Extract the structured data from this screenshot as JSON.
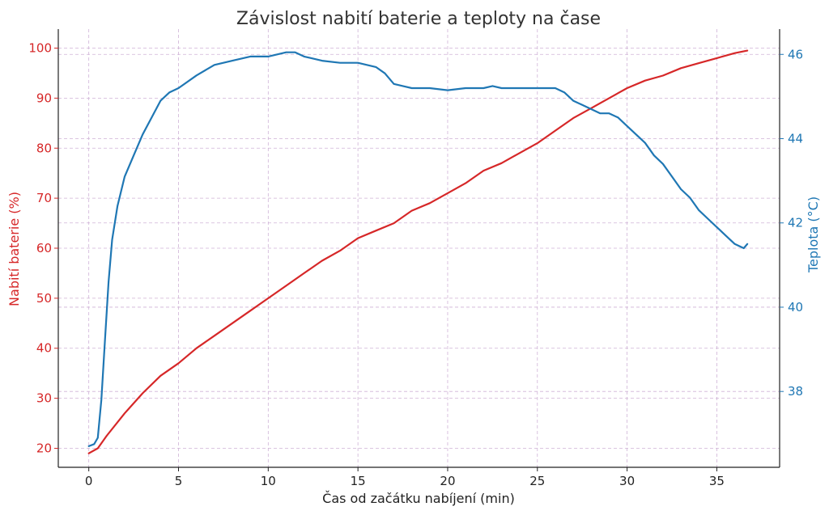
{
  "chart_data": {
    "type": "line",
    "title": "Závislost nabití baterie a teploty na čase",
    "xlabel": "Čas od začátku nabíjení (min)",
    "ylabel_left": "Nabití baterie (%)",
    "ylabel_right": "Teplota (°C)",
    "xlim": [
      -1.7,
      38.5
    ],
    "ylim_left": [
      16.2,
      103.8
    ],
    "ylim_right": [
      36.2,
      46.6
    ],
    "x_ticks": [
      "0",
      "5",
      "10",
      "15",
      "20",
      "25",
      "30",
      "35"
    ],
    "y_left_ticks": [
      "20",
      "30",
      "40",
      "50",
      "60",
      "70",
      "80",
      "90",
      "100"
    ],
    "y_right_ticks": [
      "38",
      "40",
      "42",
      "44",
      "46"
    ],
    "grid": true,
    "colors": {
      "left": "#d62728",
      "right": "#1f77b4",
      "grid": "#cfb2d6"
    },
    "series": [
      {
        "axis": "left",
        "x": [
          0,
          0.5,
          1,
          2,
          3,
          4,
          5,
          6,
          7,
          8,
          9,
          10,
          11,
          12,
          13,
          14,
          15,
          16,
          17,
          18,
          19,
          20,
          21,
          22,
          23,
          24,
          25,
          26,
          27,
          28,
          29,
          30,
          31,
          32,
          33,
          34,
          35,
          36,
          36.7
        ],
        "values": [
          19,
          20,
          22.5,
          27,
          31,
          34.5,
          37,
          40,
          42.5,
          45,
          47.5,
          50,
          52.5,
          55,
          57.5,
          59.5,
          62,
          63.5,
          65,
          67.5,
          69,
          71,
          73,
          75.5,
          77,
          79,
          81,
          83.5,
          86,
          88,
          90,
          92,
          93.5,
          94.5,
          96,
          97,
          98,
          99,
          99.5
        ]
      },
      {
        "axis": "right",
        "x": [
          0,
          0.3,
          0.5,
          0.7,
          0.9,
          1.1,
          1.3,
          1.6,
          2,
          2.5,
          3,
          3.5,
          4,
          4.5,
          5,
          6,
          7,
          8,
          9,
          10,
          11,
          11.5,
          12,
          13,
          14,
          15,
          16,
          16.5,
          17,
          17.5,
          18,
          19,
          20,
          21,
          22,
          22.5,
          23,
          24,
          25,
          26,
          26.5,
          27,
          27.5,
          28,
          28.5,
          29,
          29.5,
          30,
          30.5,
          31,
          31.5,
          32,
          32.5,
          33,
          33.5,
          34,
          34.5,
          35,
          35.5,
          36,
          36.5,
          36.7
        ],
        "values": [
          36.7,
          36.75,
          36.9,
          37.8,
          39.2,
          40.6,
          41.6,
          42.4,
          43.1,
          43.6,
          44.1,
          44.5,
          44.9,
          45.1,
          45.2,
          45.5,
          45.75,
          45.85,
          45.95,
          45.95,
          46.05,
          46.05,
          45.95,
          45.85,
          45.8,
          45.8,
          45.7,
          45.55,
          45.3,
          45.25,
          45.2,
          45.2,
          45.15,
          45.2,
          45.2,
          45.25,
          45.2,
          45.2,
          45.2,
          45.2,
          45.1,
          44.9,
          44.8,
          44.7,
          44.6,
          44.6,
          44.5,
          44.3,
          44.1,
          43.9,
          43.6,
          43.4,
          43.1,
          42.8,
          42.6,
          42.3,
          42.1,
          41.9,
          41.7,
          41.5,
          41.4,
          41.5
        ]
      }
    ]
  }
}
